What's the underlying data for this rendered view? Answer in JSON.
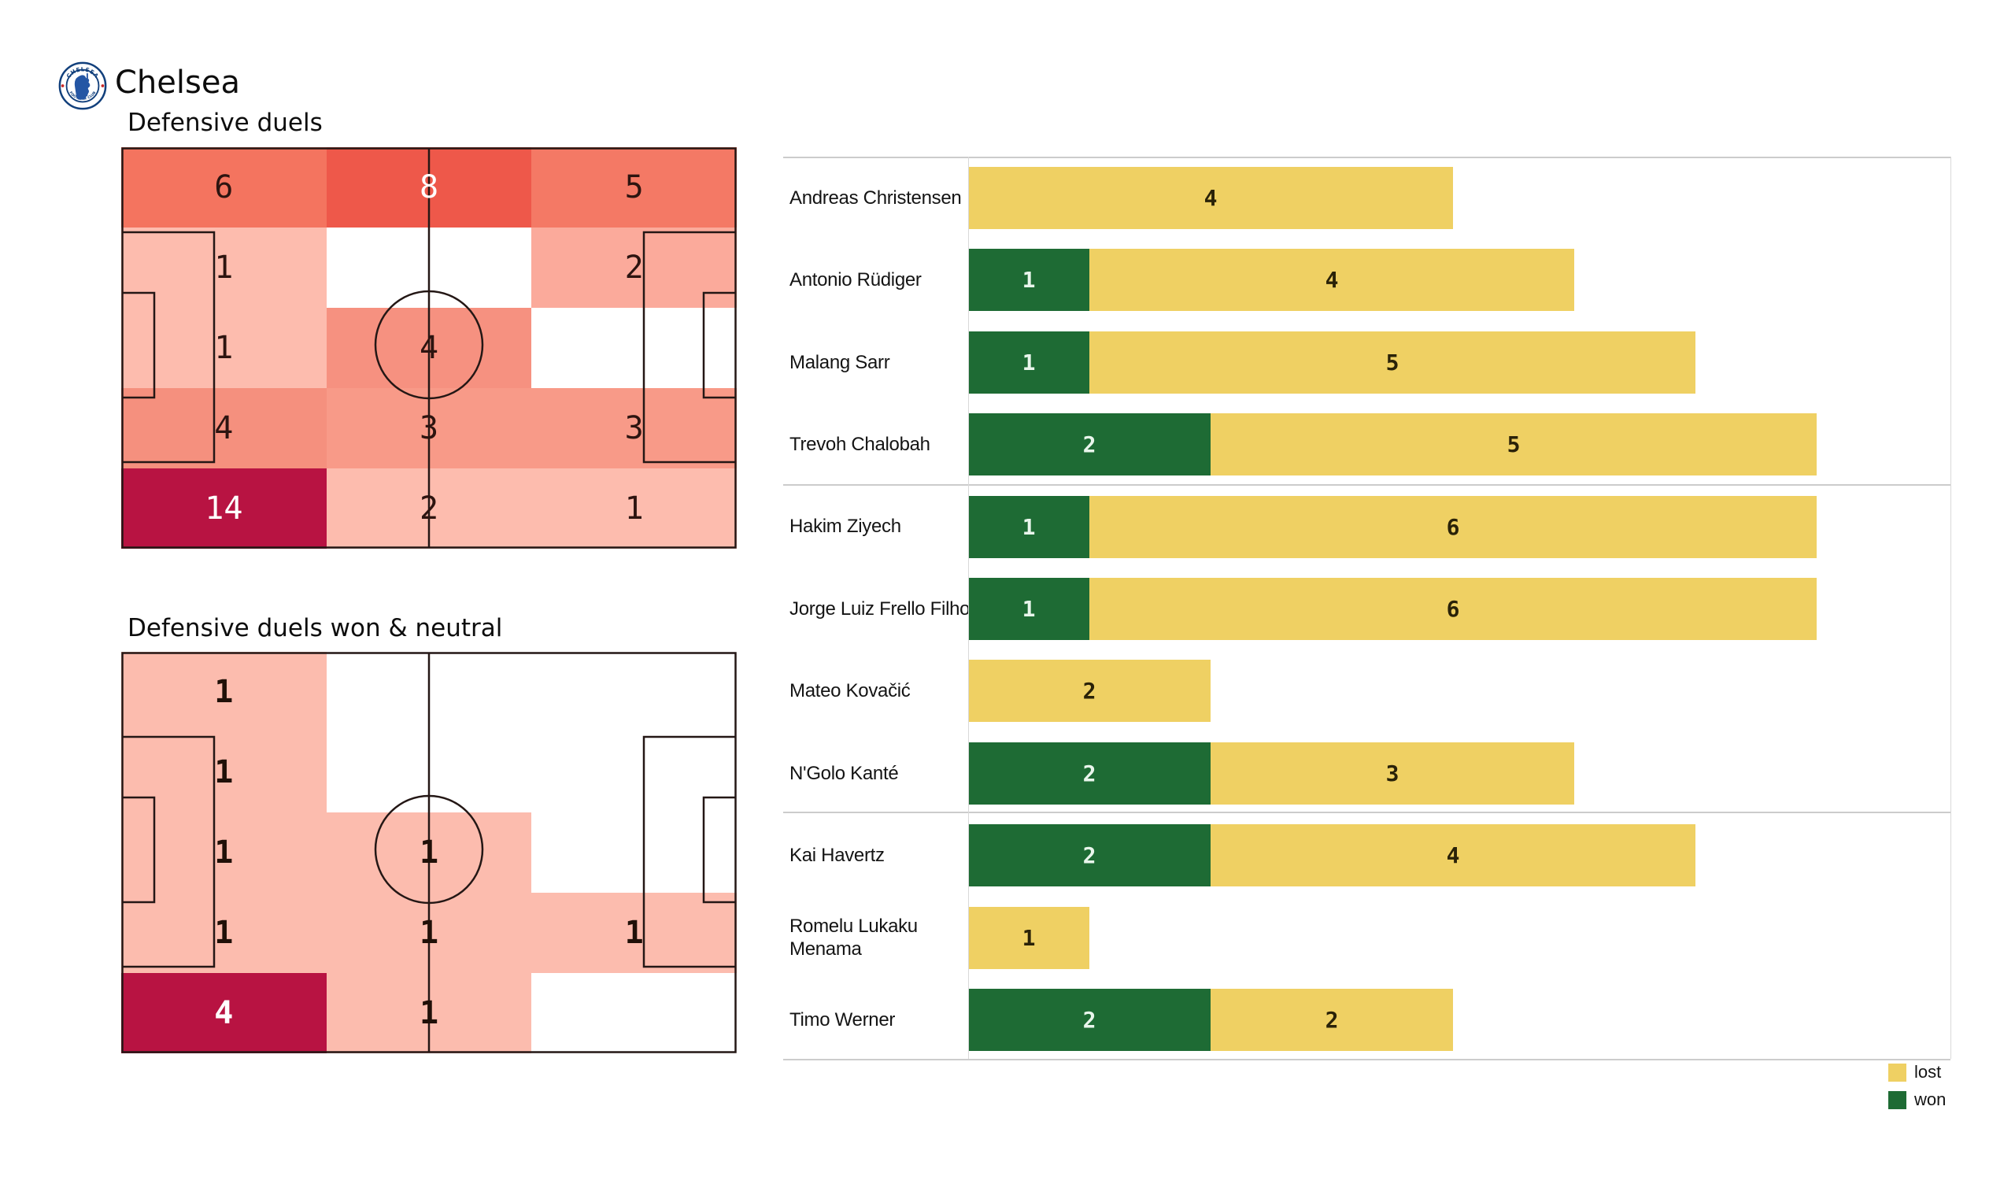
{
  "header": {
    "team_name": "Chelsea"
  },
  "colors": {
    "lost": "#efd063",
    "won": "#1e6b34",
    "pitch_line": "#241715",
    "separator": "#cccccc",
    "high_value": "#b81342"
  },
  "pitches": [
    {
      "title": "Defensive duels",
      "zones": [
        [
          {
            "value": "6",
            "bg": "#f4745f",
            "fg": "#2d1410"
          },
          {
            "value": "8",
            "bg": "#ee584a",
            "fg": "#ffffff"
          },
          {
            "value": "5",
            "bg": "#f47965",
            "fg": "#2d1410"
          }
        ],
        [
          {
            "value": "1",
            "bg": "#fdbcae",
            "fg": "#2d1410"
          },
          null,
          {
            "value": "2",
            "bg": "#fbaa9b",
            "fg": "#2d1410"
          }
        ],
        [
          {
            "value": "1",
            "bg": "#fdbcae",
            "fg": "#2d1410"
          },
          {
            "value": "4",
            "bg": "#f69180",
            "fg": "#2d1410"
          },
          null
        ],
        [
          {
            "value": "4",
            "bg": "#f5907e",
            "fg": "#2d1410"
          },
          {
            "value": "3",
            "bg": "#f89a88",
            "fg": "#2d1410"
          },
          {
            "value": "3",
            "bg": "#f89a88",
            "fg": "#2d1410"
          }
        ],
        [
          {
            "value": "14",
            "bg": "#b81342",
            "fg": "#ffffff"
          },
          {
            "value": "2",
            "bg": "#fdbcae",
            "fg": "#2d1410"
          },
          {
            "value": "1",
            "bg": "#fdbcae",
            "fg": "#2d1410"
          }
        ]
      ]
    },
    {
      "title": "Defensive duels won & neutral",
      "zones": [
        [
          {
            "value": "1",
            "bg": "#fcbcae",
            "fg": "#201008"
          },
          null,
          null
        ],
        [
          {
            "value": "1",
            "bg": "#fcbcae",
            "fg": "#201008"
          },
          null,
          null
        ],
        [
          {
            "value": "1",
            "bg": "#fcbcae",
            "fg": "#201008"
          },
          {
            "value": "1",
            "bg": "#fcbcae",
            "fg": "#201008"
          },
          null
        ],
        [
          {
            "value": "1",
            "bg": "#fcbcae",
            "fg": "#201008"
          },
          {
            "value": "1",
            "bg": "#fcbcae",
            "fg": "#201008"
          },
          {
            "value": "1",
            "bg": "#fcbcae",
            "fg": "#201008"
          }
        ],
        [
          {
            "value": "4",
            "bg": "#b81342",
            "fg": "#ffffff"
          },
          {
            "value": "1",
            "bg": "#fcbcae",
            "fg": "#201008"
          },
          null
        ]
      ]
    }
  ],
  "duel_chart": {
    "players": [
      {
        "name": "Andreas Christensen",
        "won": 0,
        "lost": 4
      },
      {
        "name": "Antonio Rüdiger",
        "won": 1,
        "lost": 4
      },
      {
        "name": "Malang Sarr",
        "won": 1,
        "lost": 5
      },
      {
        "name": "Trevoh Chalobah",
        "won": 2,
        "lost": 5
      },
      {
        "name": "Hakim Ziyech",
        "won": 1,
        "lost": 6
      },
      {
        "name": "Jorge Luiz Frello Filho",
        "won": 1,
        "lost": 6
      },
      {
        "name": "Mateo Kovačić",
        "won": 0,
        "lost": 2
      },
      {
        "name": "N'Golo Kanté",
        "won": 2,
        "lost": 3
      },
      {
        "name": "Kai Havertz",
        "won": 2,
        "lost": 4
      },
      {
        "name": "Romelu Lukaku Menama",
        "won": 0,
        "lost": 1
      },
      {
        "name": "Timo Werner",
        "won": 2,
        "lost": 2
      }
    ],
    "max_units": 7,
    "group_separators_after": [
      3,
      7
    ],
    "legend": [
      {
        "label": "lost",
        "color": "#efd063"
      },
      {
        "label": "won",
        "color": "#1e6b34"
      }
    ]
  },
  "chart_data": [
    {
      "type": "heatmap",
      "title": "Defensive duels",
      "grid": "5 rows x 3 columns over a football pitch, attacking left-to-right",
      "values": [
        [
          6,
          8,
          5
        ],
        [
          1,
          null,
          2
        ],
        [
          1,
          4,
          null
        ],
        [
          4,
          3,
          3
        ],
        [
          14,
          2,
          1
        ]
      ],
      "color_scale": "white -> light pink (#fdbcae) -> salmon (#f4745f) -> red (#ee584a) -> crimson (#b81342)"
    },
    {
      "type": "heatmap",
      "title": "Defensive duels won & neutral",
      "grid": "5 rows x 3 columns over a football pitch, attacking left-to-right",
      "values": [
        [
          1,
          null,
          null
        ],
        [
          1,
          null,
          null
        ],
        [
          1,
          1,
          null
        ],
        [
          1,
          1,
          1
        ],
        [
          4,
          1,
          null
        ]
      ],
      "color_scale": "white -> light pink (#fcbcae) -> crimson (#b81342)"
    },
    {
      "type": "bar",
      "orientation": "horizontal-stacked",
      "title": "Defensive duels won/lost per player",
      "categories": [
        "Andreas Christensen",
        "Antonio Rüdiger",
        "Malang Sarr",
        "Trevoh Chalobah",
        "Hakim Ziyech",
        "Jorge Luiz Frello Filho",
        "Mateo Kovačić",
        "N'Golo Kanté",
        "Kai Havertz",
        "Romelu Lukaku Menama",
        "Timo Werner"
      ],
      "series": [
        {
          "name": "won",
          "color": "#1e6b34",
          "values": [
            0,
            1,
            1,
            2,
            1,
            1,
            0,
            2,
            2,
            0,
            2
          ]
        },
        {
          "name": "lost",
          "color": "#efd063",
          "values": [
            4,
            4,
            5,
            5,
            6,
            6,
            2,
            3,
            4,
            1,
            2
          ]
        }
      ],
      "xlim": [
        0,
        7
      ],
      "grid": "off",
      "legend_position": "bottom-right",
      "group_rows": {
        "defenders": [
          0,
          1,
          2,
          3
        ],
        "midfielders": [
          4,
          5,
          6,
          7
        ],
        "forwards": [
          8,
          9,
          10
        ]
      }
    }
  ]
}
